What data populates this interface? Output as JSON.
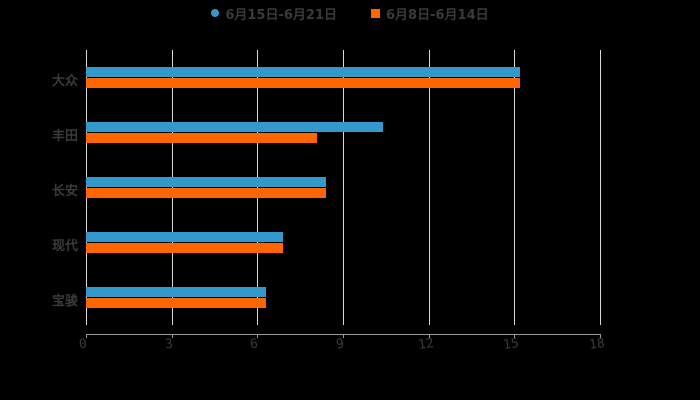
{
  "legend": {
    "items": [
      {
        "label": "6月15日-6月21日",
        "color": "#3399cc"
      },
      {
        "label": "6月8日-6月14日",
        "color": "#ff6600"
      }
    ]
  },
  "axis": {
    "x_ticks": [
      "0",
      "3",
      "6",
      "9",
      "12",
      "15",
      "18"
    ],
    "y_categories": [
      "大众",
      "丰田",
      "长安",
      "现代",
      "宝骏"
    ]
  },
  "chart_data": {
    "type": "bar",
    "orientation": "horizontal",
    "title": "",
    "xlabel": "",
    "ylabel": "",
    "categories": [
      "大众",
      "丰田",
      "长安",
      "现代",
      "宝骏"
    ],
    "series": [
      {
        "name": "6月15日-6月21日",
        "color": "#3399cc",
        "values": [
          15.2,
          10.4,
          8.4,
          6.9,
          6.3
        ]
      },
      {
        "name": "6月8日-6月14日",
        "color": "#ff6600",
        "values": [
          15.2,
          8.1,
          8.4,
          6.9,
          6.3
        ]
      }
    ],
    "xlim": [
      0,
      18
    ],
    "x_ticks": [
      0,
      3,
      6,
      9,
      12,
      15,
      18
    ],
    "grid": "vertical",
    "legend_position": "top"
  }
}
